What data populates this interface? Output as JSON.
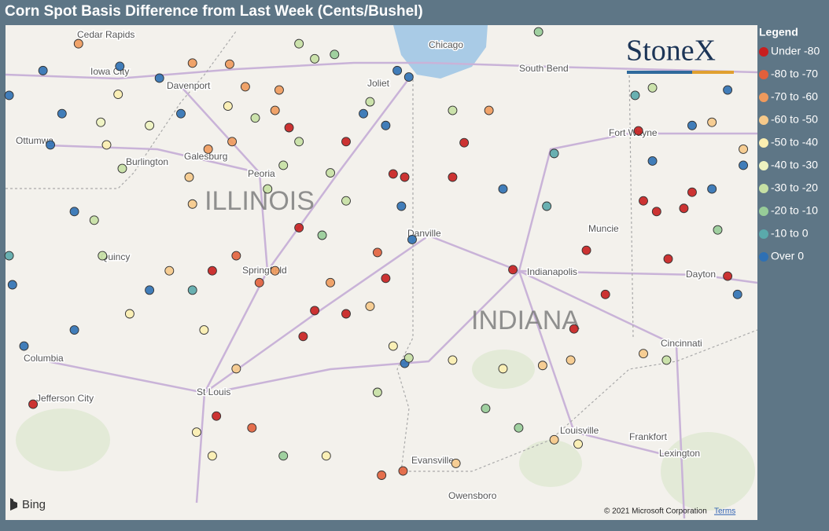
{
  "title": "Corn Spot Basis Difference from Last Week (Cents/Bushel)",
  "legend": {
    "title": "Legend",
    "items": [
      {
        "label": "Under -80",
        "color": "#c81e1e"
      },
      {
        "label": "-80 to -70",
        "color": "#e2603c"
      },
      {
        "label": "-70 to -60",
        "color": "#f09a5c"
      },
      {
        "label": "-60 to -50",
        "color": "#f6c98a"
      },
      {
        "label": "-50 to -40",
        "color": "#fbeeb0"
      },
      {
        "label": "-40 to -30",
        "color": "#eef3c0"
      },
      {
        "label": "-30 to -20",
        "color": "#c6e0a4"
      },
      {
        "label": "-20 to -10",
        "color": "#97cc98"
      },
      {
        "label": "-10 to 0",
        "color": "#5aa9ab"
      },
      {
        "label": "Over 0",
        "color": "#2e70b4"
      }
    ]
  },
  "map_labels": {
    "states": [
      "ILLINOIS",
      "INDIANA"
    ],
    "cities": [
      "Cedar Rapids",
      "Iowa City",
      "Davenport",
      "Ottumwa",
      "Burlington",
      "Galesburg",
      "Peoria",
      "Quincy",
      "Springfield",
      "Columbia",
      "Jefferson City",
      "St Louis",
      "Evansville",
      "Owensboro",
      "Chicago",
      "Joliet",
      "South Bend",
      "Fort Wayne",
      "Muncie",
      "Indianapolis",
      "Dayton",
      "Danville",
      "Cincinnati",
      "Louisville",
      "Frankfort",
      "Lexington"
    ]
  },
  "points": [
    [
      -92.71,
      41.41,
      9
    ],
    [
      -91.37,
      41.68,
      9
    ],
    [
      -90.89,
      41.57,
      9
    ],
    [
      -90.49,
      41.71,
      2
    ],
    [
      -90.04,
      41.7,
      2
    ],
    [
      -89.85,
      41.49,
      2
    ],
    [
      -89.44,
      41.46,
      2
    ],
    [
      -89.2,
      41.89,
      6
    ],
    [
      -89.01,
      41.75,
      6
    ],
    [
      -88.77,
      41.79,
      7
    ],
    [
      -88.34,
      41.35,
      6
    ],
    [
      -88.01,
      41.64,
      9
    ],
    [
      -87.87,
      41.58,
      9
    ],
    [
      -86.3,
      42.0,
      7
    ],
    [
      -86.9,
      41.27,
      2
    ],
    [
      -87.34,
      41.27,
      6
    ],
    [
      -87.2,
      40.97,
      0
    ],
    [
      -88.06,
      40.68,
      0
    ],
    [
      -87.92,
      40.65,
      0
    ],
    [
      -87.96,
      40.38,
      9
    ],
    [
      -87.83,
      40.07,
      9
    ],
    [
      -87.34,
      40.65,
      0
    ],
    [
      -86.73,
      40.54,
      9
    ],
    [
      -86.11,
      40.87,
      8
    ],
    [
      -86.2,
      40.38,
      8
    ],
    [
      -85.72,
      39.97,
      0
    ],
    [
      -86.61,
      39.79,
      0
    ],
    [
      -85.49,
      39.56,
      0
    ],
    [
      -85.87,
      39.24,
      0
    ],
    [
      -86.25,
      38.9,
      3
    ],
    [
      -86.73,
      38.87,
      4
    ],
    [
      -86.11,
      38.21,
      3
    ],
    [
      -87.34,
      38.95,
      4
    ],
    [
      -85.09,
      41.08,
      0
    ],
    [
      -84.92,
      40.8,
      9
    ],
    [
      -85.03,
      40.43,
      0
    ],
    [
      -84.87,
      40.33,
      0
    ],
    [
      -84.54,
      40.36,
      0
    ],
    [
      -84.44,
      40.51,
      0
    ],
    [
      -84.73,
      39.89,
      0
    ],
    [
      -84.2,
      41.16,
      3
    ],
    [
      -84.44,
      41.13,
      9
    ],
    [
      -84.01,
      41.46,
      9
    ],
    [
      -83.82,
      40.91,
      3
    ],
    [
      -84.13,
      40.16,
      7
    ],
    [
      -84.01,
      39.73,
      0
    ],
    [
      -85.03,
      39.01,
      3
    ],
    [
      -84.75,
      38.95,
      6
    ],
    [
      -85.91,
      38.95,
      3
    ],
    [
      -85.13,
      41.41,
      8
    ],
    [
      -84.92,
      41.48,
      6
    ],
    [
      -92.67,
      39.65,
      9
    ],
    [
      -92.71,
      39.92,
      8
    ],
    [
      -92.42,
      38.54,
      0
    ],
    [
      -92.53,
      39.08,
      9
    ],
    [
      -91.92,
      39.23,
      9
    ],
    [
      -91.68,
      40.25,
      6
    ],
    [
      -91.58,
      39.92,
      6
    ],
    [
      -91.34,
      40.73,
      6
    ],
    [
      -91.01,
      39.6,
      9
    ],
    [
      -91.25,
      39.38,
      4
    ],
    [
      -90.77,
      39.78,
      3
    ],
    [
      -90.49,
      39.6,
      8
    ],
    [
      -90.35,
      39.23,
      4
    ],
    [
      -90.25,
      39.78,
      0
    ],
    [
      -89.96,
      39.92,
      1
    ],
    [
      -89.68,
      39.67,
      1
    ],
    [
      -89.49,
      39.78,
      2
    ],
    [
      -89.96,
      38.87,
      3
    ],
    [
      -90.2,
      38.43,
      0
    ],
    [
      -89.77,
      38.32,
      1
    ],
    [
      -90.44,
      38.28,
      4
    ],
    [
      -90.25,
      38.06,
      4
    ],
    [
      -89.39,
      38.06,
      7
    ],
    [
      -89.58,
      40.54,
      6
    ],
    [
      -89.39,
      40.76,
      6
    ],
    [
      -89.2,
      40.98,
      6
    ],
    [
      -88.82,
      40.69,
      6
    ],
    [
      -88.63,
      40.43,
      6
    ],
    [
      -88.92,
      40.11,
      7
    ],
    [
      -89.2,
      40.18,
      0
    ],
    [
      -89.01,
      39.41,
      0
    ],
    [
      -89.15,
      39.17,
      0
    ],
    [
      -88.63,
      39.38,
      0
    ],
    [
      -88.82,
      39.67,
      2
    ],
    [
      -88.25,
      39.95,
      1
    ],
    [
      -88.15,
      39.71,
      0
    ],
    [
      -88.34,
      39.45,
      3
    ],
    [
      -88.06,
      39.08,
      4
    ],
    [
      -87.92,
      38.92,
      9
    ],
    [
      -88.25,
      38.65,
      6
    ],
    [
      -88.87,
      38.06,
      4
    ],
    [
      -88.2,
      37.88,
      1
    ],
    [
      -87.94,
      37.92,
      1
    ],
    [
      -87.87,
      38.97,
      6
    ],
    [
      -90.3,
      40.91,
      2
    ],
    [
      -90.01,
      40.98,
      2
    ],
    [
      -90.53,
      40.65,
      3
    ],
    [
      -90.49,
      40.4,
      3
    ],
    [
      -91.01,
      41.13,
      5
    ],
    [
      -91.53,
      40.95,
      4
    ],
    [
      -91.92,
      40.33,
      9
    ],
    [
      -92.21,
      40.95,
      9
    ],
    [
      -92.07,
      41.24,
      9
    ],
    [
      -91.87,
      41.89,
      2
    ],
    [
      -92.3,
      41.64,
      9
    ],
    [
      -89.73,
      41.2,
      6
    ],
    [
      -89.49,
      41.27,
      2
    ],
    [
      -89.32,
      41.11,
      0
    ],
    [
      -88.63,
      40.98,
      0
    ],
    [
      -88.42,
      41.24,
      9
    ],
    [
      -88.15,
      41.13,
      9
    ],
    [
      -90.06,
      41.31,
      4
    ],
    [
      -90.63,
      41.24,
      9
    ],
    [
      -91.39,
      41.42,
      4
    ],
    [
      -91.6,
      41.16,
      5
    ],
    [
      -87.3,
      37.99,
      3
    ],
    [
      -86.54,
      38.32,
      7
    ],
    [
      -86.94,
      38.5,
      7
    ],
    [
      -85.82,
      38.17,
      4
    ],
    [
      -83.89,
      39.56,
      9
    ],
    [
      -83.82,
      40.76,
      9
    ],
    [
      -84.2,
      40.54,
      9
    ]
  ],
  "logo": "StoneX",
  "bing": "Bing",
  "copyright": "© 2021 Microsoft Corporation",
  "terms": "Terms"
}
